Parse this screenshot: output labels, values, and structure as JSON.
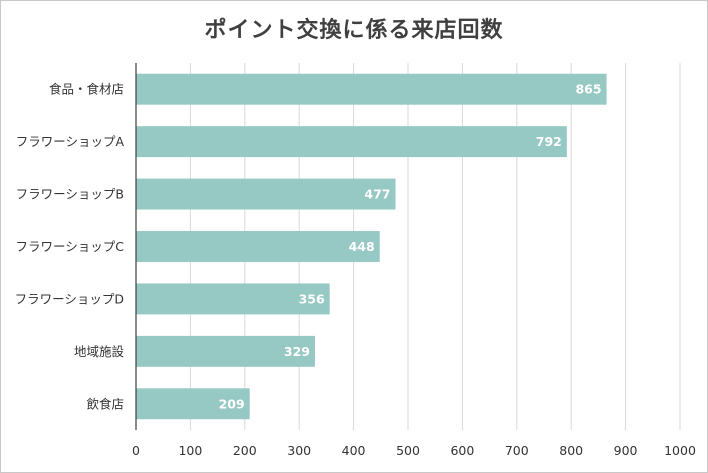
{
  "chart_data": {
    "type": "bar",
    "orientation": "horizontal",
    "title": "ポイント交換に係る来店回数",
    "categories": [
      "食品・食材店",
      "フラワーショップA",
      "フラワーショップB",
      "フラワーショップC",
      "フラワーショップD",
      "地域施設",
      "飲食店"
    ],
    "values": [
      865,
      792,
      477,
      448,
      356,
      329,
      209
    ],
    "xlim": [
      0,
      1000
    ],
    "xticks": [
      "0",
      "100",
      "200",
      "300",
      "400",
      "500",
      "600",
      "700",
      "800",
      "900",
      "1000"
    ],
    "grid": true,
    "bar_color": "#96c8c4",
    "data_labels": true
  }
}
